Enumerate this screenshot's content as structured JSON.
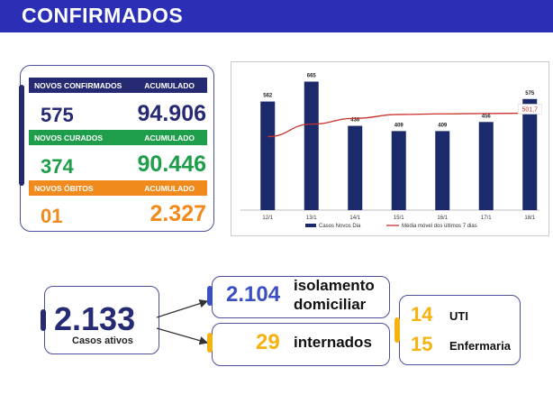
{
  "header": {
    "title": "CONFIRMADOS"
  },
  "stats": {
    "confirmed": {
      "label": "NOVOS CONFIRMADOS",
      "acc_label": "ACUMULADO",
      "new": "575",
      "total": "94.906"
    },
    "recovered": {
      "label": "NOVOS CURADOS",
      "acc_label": "ACUMULADO",
      "new": "374",
      "total": "90.446"
    },
    "deaths": {
      "label": "NOVOS ÓBITOS",
      "acc_label": "ACUMULADO",
      "new": "01",
      "total": "2.327"
    }
  },
  "active": {
    "value": "2.133",
    "label": "Casos ativos"
  },
  "isolation": {
    "value": "2.104",
    "label_line1": "isolamento",
    "label_line2": "domiciliar"
  },
  "hospital": {
    "value": "29",
    "label": "internados"
  },
  "beds": {
    "uti": {
      "value": "14",
      "label": "UTI"
    },
    "enfermaria": {
      "value": "15",
      "label": "Enfermaria"
    }
  },
  "colors": {
    "header": "#2a2fb5",
    "navy": "#252a72",
    "green": "#1e9e4a",
    "orange": "#f08a1c",
    "gold": "#f5b312",
    "bar": "#1b2a6b",
    "line": "#c8312c",
    "blue_text": "#3b4fc2"
  },
  "chart_data": {
    "type": "bar",
    "categories": [
      "12/1",
      "13/1",
      "14/1",
      "15/1",
      "16/1",
      "17/1",
      "18/1"
    ],
    "series": [
      {
        "name": "Casos Novos Dia",
        "type": "bar",
        "values": [
          562,
          665,
          436,
          409,
          409,
          456,
          575
        ]
      },
      {
        "name": "Média móvel dos últimos 7 dias",
        "type": "line",
        "values": [
          380,
          445,
          475,
          495,
          498,
          500,
          501.7
        ]
      }
    ],
    "data_labels": [
      "562",
      "665",
      "436",
      "409",
      "409",
      "456",
      "575"
    ],
    "annotation": "501,7",
    "ylim": [
      0,
      700
    ],
    "grid": false,
    "legend_position": "bottom"
  }
}
